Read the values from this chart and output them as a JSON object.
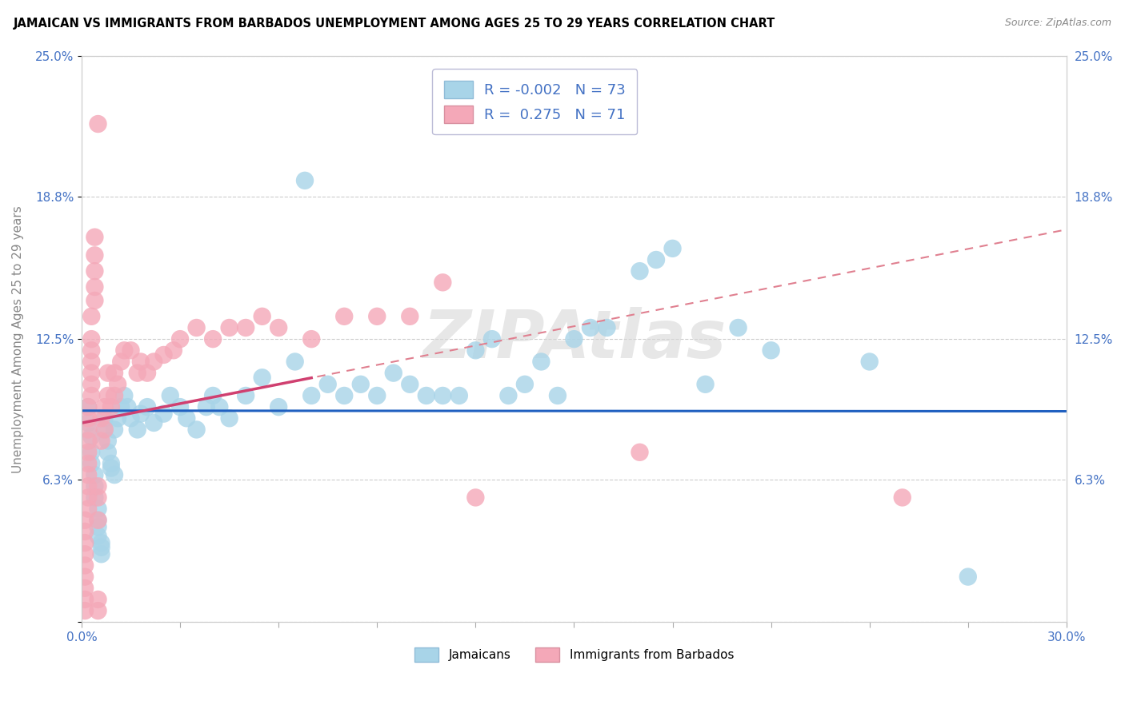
{
  "title": "JAMAICAN VS IMMIGRANTS FROM BARBADOS UNEMPLOYMENT AMONG AGES 25 TO 29 YEARS CORRELATION CHART",
  "source": "Source: ZipAtlas.com",
  "ylabel": "Unemployment Among Ages 25 to 29 years",
  "xlim": [
    0.0,
    0.3
  ],
  "ylim": [
    0.0,
    0.25
  ],
  "ytick_positions": [
    0.0,
    0.063,
    0.125,
    0.188,
    0.25
  ],
  "ytick_labels_left": [
    "",
    "6.3%",
    "12.5%",
    "18.8%",
    "25.0%"
  ],
  "ytick_labels_right": [
    "",
    "6.3%",
    "12.5%",
    "18.8%",
    "25.0%"
  ],
  "xtick_positions": [
    0.0,
    0.03,
    0.06,
    0.09,
    0.12,
    0.15,
    0.18,
    0.21,
    0.24,
    0.27,
    0.3
  ],
  "xtick_labels": [
    "0.0%",
    "",
    "",
    "",
    "",
    "",
    "",
    "",
    "",
    "",
    "30.0%"
  ],
  "blue_r": -0.002,
  "blue_n": 73,
  "pink_r": 0.275,
  "pink_n": 71,
  "blue_fill": "#A8D4E8",
  "pink_fill": "#F4A8B8",
  "trend_blue_color": "#2060C0",
  "trend_pink_color": "#D04070",
  "trend_pink_dashed_color": "#E08090",
  "tick_color": "#4472C4",
  "grid_color": "#CCCCCC",
  "watermark": "ZIPAtlas",
  "watermark_color": "#D8D8D8",
  "legend_text_color": "#4472C4",
  "ylabel_color": "#888888",
  "j_x": [
    0.002,
    0.002,
    0.003,
    0.003,
    0.003,
    0.004,
    0.004,
    0.004,
    0.005,
    0.005,
    0.005,
    0.005,
    0.006,
    0.006,
    0.006,
    0.007,
    0.007,
    0.008,
    0.008,
    0.009,
    0.009,
    0.01,
    0.01,
    0.011,
    0.012,
    0.013,
    0.014,
    0.015,
    0.017,
    0.018,
    0.02,
    0.022,
    0.025,
    0.027,
    0.03,
    0.032,
    0.035,
    0.038,
    0.04,
    0.042,
    0.045,
    0.05,
    0.055,
    0.06,
    0.065,
    0.068,
    0.07,
    0.075,
    0.08,
    0.085,
    0.09,
    0.095,
    0.1,
    0.105,
    0.11,
    0.115,
    0.12,
    0.125,
    0.13,
    0.135,
    0.14,
    0.145,
    0.15,
    0.155,
    0.16,
    0.17,
    0.175,
    0.18,
    0.19,
    0.2,
    0.21,
    0.24,
    0.27
  ],
  "j_y": [
    0.095,
    0.088,
    0.082,
    0.075,
    0.07,
    0.065,
    0.06,
    0.055,
    0.05,
    0.045,
    0.042,
    0.038,
    0.035,
    0.033,
    0.03,
    0.09,
    0.085,
    0.08,
    0.075,
    0.07,
    0.068,
    0.065,
    0.085,
    0.09,
    0.095,
    0.1,
    0.095,
    0.09,
    0.085,
    0.092,
    0.095,
    0.088,
    0.092,
    0.1,
    0.095,
    0.09,
    0.085,
    0.095,
    0.1,
    0.095,
    0.09,
    0.1,
    0.108,
    0.095,
    0.115,
    0.195,
    0.1,
    0.105,
    0.1,
    0.105,
    0.1,
    0.11,
    0.105,
    0.1,
    0.1,
    0.1,
    0.12,
    0.125,
    0.1,
    0.105,
    0.115,
    0.1,
    0.125,
    0.13,
    0.13,
    0.155,
    0.16,
    0.165,
    0.105,
    0.13,
    0.12,
    0.115,
    0.02
  ],
  "b_x": [
    0.001,
    0.001,
    0.001,
    0.001,
    0.001,
    0.001,
    0.001,
    0.001,
    0.001,
    0.002,
    0.002,
    0.002,
    0.002,
    0.002,
    0.002,
    0.002,
    0.002,
    0.002,
    0.002,
    0.003,
    0.003,
    0.003,
    0.003,
    0.003,
    0.003,
    0.003,
    0.004,
    0.004,
    0.004,
    0.004,
    0.004,
    0.005,
    0.005,
    0.005,
    0.005,
    0.005,
    0.005,
    0.006,
    0.006,
    0.007,
    0.007,
    0.008,
    0.008,
    0.009,
    0.01,
    0.01,
    0.011,
    0.012,
    0.013,
    0.015,
    0.017,
    0.018,
    0.02,
    0.022,
    0.025,
    0.028,
    0.03,
    0.035,
    0.04,
    0.045,
    0.05,
    0.055,
    0.06,
    0.07,
    0.08,
    0.09,
    0.1,
    0.11,
    0.12,
    0.17,
    0.25
  ],
  "b_y": [
    0.005,
    0.01,
    0.015,
    0.02,
    0.025,
    0.03,
    0.035,
    0.04,
    0.045,
    0.05,
    0.055,
    0.06,
    0.065,
    0.07,
    0.075,
    0.08,
    0.085,
    0.09,
    0.095,
    0.1,
    0.105,
    0.11,
    0.115,
    0.12,
    0.125,
    0.135,
    0.142,
    0.148,
    0.155,
    0.162,
    0.17,
    0.005,
    0.01,
    0.045,
    0.055,
    0.06,
    0.22,
    0.08,
    0.09,
    0.085,
    0.095,
    0.1,
    0.11,
    0.095,
    0.1,
    0.11,
    0.105,
    0.115,
    0.12,
    0.12,
    0.11,
    0.115,
    0.11,
    0.115,
    0.118,
    0.12,
    0.125,
    0.13,
    0.125,
    0.13,
    0.13,
    0.135,
    0.13,
    0.125,
    0.135,
    0.135,
    0.135,
    0.15,
    0.055,
    0.075,
    0.055
  ]
}
